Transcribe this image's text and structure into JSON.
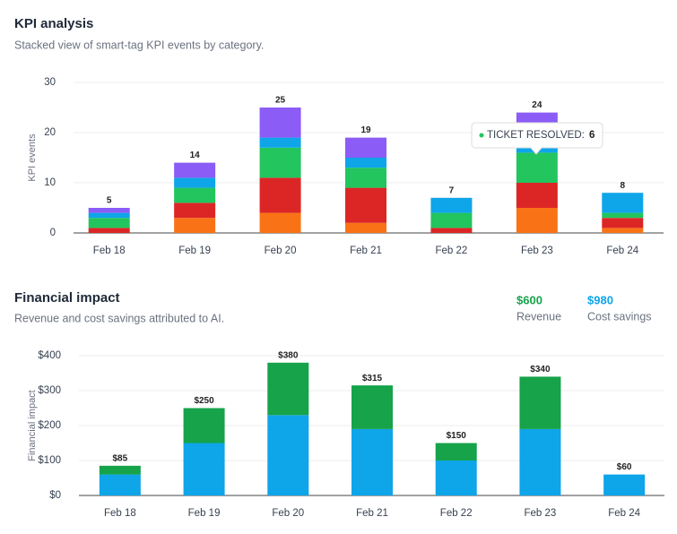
{
  "chart_data": [
    {
      "type": "stacked_bar",
      "title": "KPI analysis",
      "subtitle": "Stacked view of smart-tag KPI events by category.",
      "ylabel": "KPI events",
      "categories": [
        "Feb 18",
        "Feb 19",
        "Feb 20",
        "Feb 21",
        "Feb 22",
        "Feb 23",
        "Feb 24"
      ],
      "series": [
        {
          "color": "#f97316",
          "values": [
            0,
            3,
            4,
            2,
            0,
            5,
            1
          ]
        },
        {
          "color": "#dc2626",
          "values": [
            1,
            3,
            7,
            7,
            1,
            5,
            2
          ]
        },
        {
          "name": "TICKET RESOLVED",
          "color": "#22c55e",
          "values": [
            2,
            3,
            6,
            4,
            3,
            6,
            1
          ]
        },
        {
          "color": "#0ea5e9",
          "values": [
            1,
            2,
            2,
            2,
            3,
            6,
            4
          ]
        },
        {
          "color": "#8b5cf6",
          "values": [
            1,
            3,
            6,
            4,
            0,
            2,
            0
          ]
        }
      ],
      "totals": [
        5,
        14,
        25,
        19,
        7,
        24,
        8
      ],
      "ylim": [
        0,
        30
      ],
      "yticks": [
        0,
        10,
        20,
        30
      ],
      "grid": true,
      "tooltip": {
        "label": "TICKET RESOLVED:",
        "value": 6
      }
    },
    {
      "type": "stacked_bar",
      "title": "Financial impact",
      "subtitle": "Revenue and cost savings attributed to AI.",
      "ylabel": "Financial impact",
      "categories": [
        "Feb 18",
        "Feb 19",
        "Feb 20",
        "Feb 21",
        "Feb 22",
        "Feb 23",
        "Feb 24"
      ],
      "series": [
        {
          "name": "Cost savings",
          "color": "#0ea5e9",
          "values": [
            60,
            150,
            230,
            190,
            100,
            190,
            60
          ],
          "total": {
            "value": 980,
            "label": "$980"
          }
        },
        {
          "name": "Revenue",
          "color": "#16a34a",
          "values": [
            25,
            100,
            150,
            125,
            50,
            150,
            0
          ],
          "total": {
            "value": 600,
            "label": "$600"
          }
        }
      ],
      "totals": [
        85,
        250,
        380,
        315,
        150,
        340,
        60
      ],
      "total_labels": [
        "$85",
        "$250",
        "$380",
        "$315",
        "$150",
        "$340",
        "$60"
      ],
      "ylim": [
        0,
        400
      ],
      "yticks": [
        {
          "value": 0,
          "label": "$0"
        },
        {
          "value": 100,
          "label": "$100"
        },
        {
          "value": 200,
          "label": "$200"
        },
        {
          "value": 300,
          "label": "$300"
        },
        {
          "value": 400,
          "label": "$400"
        }
      ],
      "grid": true
    }
  ]
}
